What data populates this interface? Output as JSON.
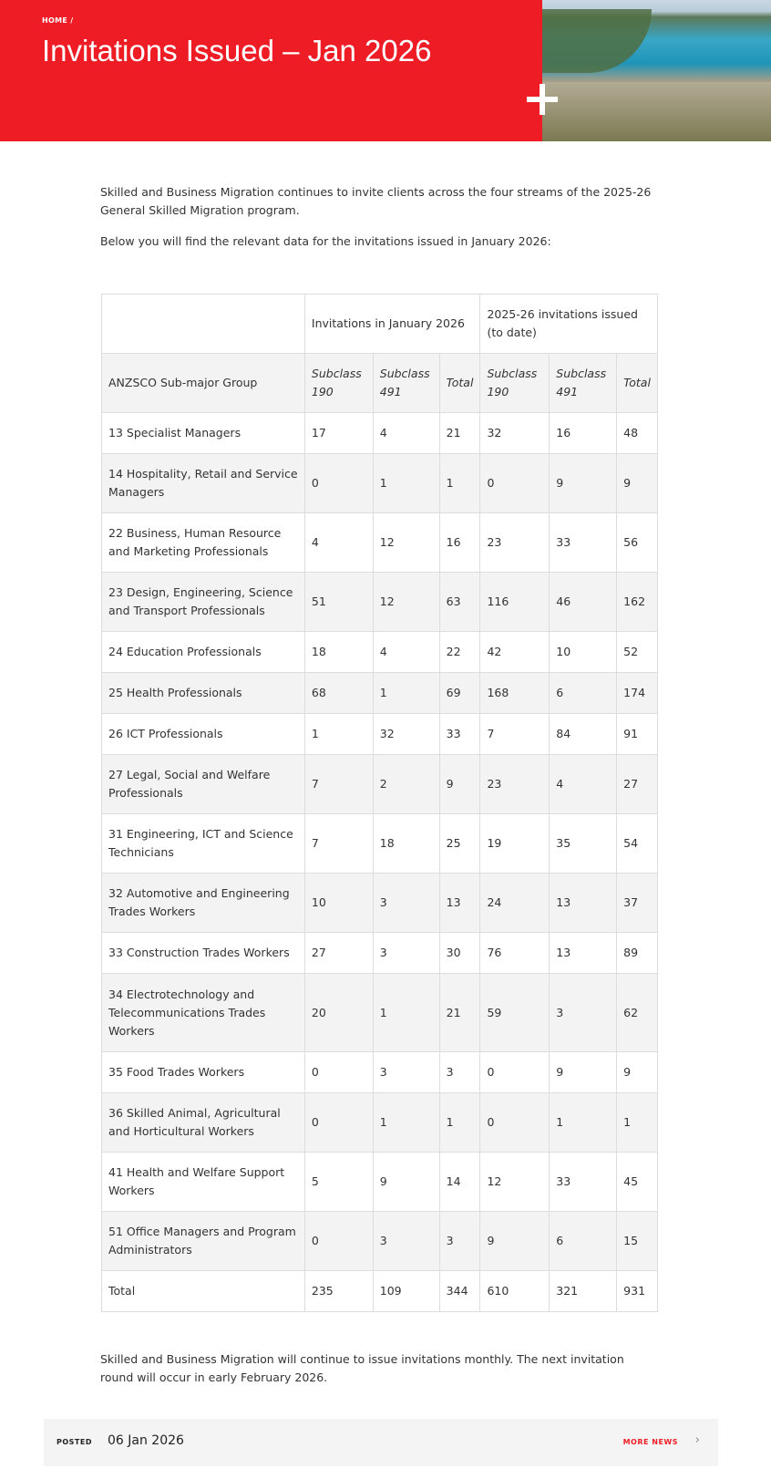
{
  "header": {
    "breadcrumb": "HOME /",
    "title": "Invitations Issued – Jan 2026",
    "accent_color": "#ee1c25"
  },
  "intro": [
    "Skilled and Business Migration continues to invite clients across the four streams of the 2025-26 General Skilled Migration program.",
    "Below you will find the relevant data for the invitations issued in January 2026:"
  ],
  "table": {
    "group_headers": [
      "Invitations in January 2026",
      "2025-26 invitations issued (to date)"
    ],
    "columns": [
      "ANZSCO Sub-major Group",
      "Subclass 190",
      "Subclass 491",
      "Total",
      "Subclass 190",
      "Subclass 491",
      "Total"
    ],
    "rows": [
      [
        "13 Specialist Managers",
        "17",
        "4",
        "21",
        "32",
        "16",
        "48"
      ],
      [
        "14 Hospitality, Retail and Service Managers",
        "0",
        "1",
        "1",
        "0",
        "9",
        "9"
      ],
      [
        "22 Business, Human Resource and Marketing Professionals",
        "4",
        "12",
        "16",
        "23",
        "33",
        "56"
      ],
      [
        "23 Design, Engineering, Science and Transport Professionals",
        "51",
        "12",
        "63",
        "116",
        "46",
        "162"
      ],
      [
        "24 Education Professionals",
        "18",
        "4",
        "22",
        "42",
        "10",
        "52"
      ],
      [
        "25 Health Professionals",
        "68",
        "1",
        "69",
        "168",
        "6",
        "174"
      ],
      [
        "26 ICT Professionals",
        "1",
        "32",
        "33",
        "7",
        "84",
        "91"
      ],
      [
        "27 Legal, Social and Welfare Professionals",
        "7",
        "2",
        "9",
        "23",
        "4",
        "27"
      ],
      [
        "31 Engineering, ICT and Science Technicians",
        "7",
        "18",
        "25",
        "19",
        "35",
        "54"
      ],
      [
        "32 Automotive and Engineering Trades Workers",
        "10",
        "3",
        "13",
        "24",
        "13",
        "37"
      ],
      [
        "33 Construction Trades Workers",
        "27",
        "3",
        "30",
        "76",
        "13",
        "89"
      ],
      [
        "34 Electrotechnology and Telecommunications Trades Workers",
        "20",
        "1",
        "21",
        "59",
        "3",
        "62"
      ],
      [
        "35 Food Trades Workers",
        "0",
        "3",
        "3",
        "0",
        "9",
        "9"
      ],
      [
        "36 Skilled Animal, Agricultural and Horticultural Workers",
        "0",
        "1",
        "1",
        "0",
        "1",
        "1"
      ],
      [
        "41 Health and Welfare Support Workers",
        "5",
        "9",
        "14",
        "12",
        "33",
        "45"
      ],
      [
        "51 Office Managers and Program Administrators",
        "0",
        "3",
        "3",
        "9",
        "6",
        "15"
      ],
      [
        "Total",
        "235",
        "109",
        "344",
        "610",
        "321",
        "931"
      ]
    ]
  },
  "outro": "Skilled and Business Migration will continue to issue invitations monthly. The next invitation round will occur in early February 2026.",
  "footer": {
    "posted_label": "POSTED",
    "posted_date": "06 Jan 2026",
    "more_news": "MORE NEWS",
    "chevron_icon": "chevron-right-icon"
  }
}
